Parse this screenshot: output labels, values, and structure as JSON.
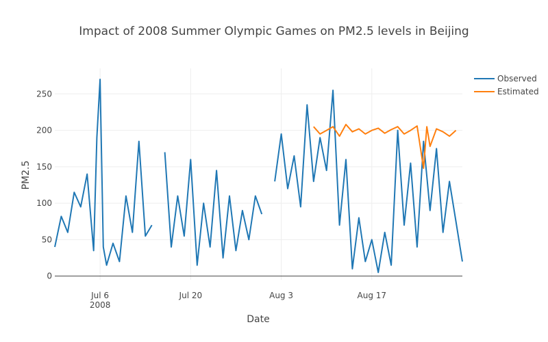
{
  "chart_data": {
    "type": "line",
    "title": "Impact of 2008 Summer Olympic Games on PM2.5 levels in Beijing",
    "xlabel": "Date",
    "ylabel": "PM2.5",
    "x_range": [
      "2008-06-29",
      "2008-08-31"
    ],
    "ylim": [
      -5,
      285
    ],
    "y_ticks": [
      0,
      50,
      100,
      150,
      200,
      250
    ],
    "x_ticks": [
      {
        "date": "2008-07-06",
        "label": "Jul 6",
        "sublabel": "2008"
      },
      {
        "date": "2008-07-20",
        "label": "Jul 20",
        "sublabel": ""
      },
      {
        "date": "2008-08-03",
        "label": "Aug 3",
        "sublabel": ""
      },
      {
        "date": "2008-08-17",
        "label": "Aug 17",
        "sublabel": ""
      }
    ],
    "grid": true,
    "legend_position": "top-right",
    "series": [
      {
        "name": "Observed",
        "color": "#1f77b4",
        "points": [
          [
            "2008-06-29",
            40
          ],
          [
            "2008-06-30",
            82
          ],
          [
            "2008-07-01",
            60
          ],
          [
            "2008-07-02",
            115
          ],
          [
            "2008-07-03",
            95
          ],
          [
            "2008-07-04",
            140
          ],
          [
            "2008-07-05",
            35
          ],
          [
            "2008-07-05 12:00",
            190
          ],
          [
            "2008-07-06",
            270
          ],
          [
            "2008-07-06 12:00",
            40
          ],
          [
            "2008-07-07",
            15
          ],
          [
            "2008-07-08",
            45
          ],
          [
            "2008-07-09",
            20
          ],
          [
            "2008-07-10",
            110
          ],
          [
            "2008-07-11",
            60
          ],
          [
            "2008-07-12",
            185
          ],
          [
            "2008-07-13",
            55
          ],
          [
            "2008-07-14",
            70
          ],
          [
            "2008-07-15",
            null
          ],
          [
            "2008-07-16",
            170
          ],
          [
            "2008-07-17",
            40
          ],
          [
            "2008-07-18",
            110
          ],
          [
            "2008-07-19",
            55
          ],
          [
            "2008-07-20",
            160
          ],
          [
            "2008-07-21",
            15
          ],
          [
            "2008-07-22",
            100
          ],
          [
            "2008-07-23",
            40
          ],
          [
            "2008-07-24",
            145
          ],
          [
            "2008-07-25",
            25
          ],
          [
            "2008-07-26",
            110
          ],
          [
            "2008-07-27",
            35
          ],
          [
            "2008-07-28",
            90
          ],
          [
            "2008-07-29",
            50
          ],
          [
            "2008-07-30",
            110
          ],
          [
            "2008-07-31",
            85
          ],
          [
            "2008-08-01",
            null
          ],
          [
            "2008-08-02",
            130
          ],
          [
            "2008-08-03",
            195
          ],
          [
            "2008-08-04",
            120
          ],
          [
            "2008-08-05",
            165
          ],
          [
            "2008-08-06",
            95
          ],
          [
            "2008-08-07",
            235
          ],
          [
            "2008-08-08",
            130
          ],
          [
            "2008-08-09",
            190
          ],
          [
            "2008-08-10",
            145
          ],
          [
            "2008-08-11",
            255
          ],
          [
            "2008-08-12",
            70
          ],
          [
            "2008-08-13",
            160
          ],
          [
            "2008-08-14",
            10
          ],
          [
            "2008-08-15",
            80
          ],
          [
            "2008-08-16",
            20
          ],
          [
            "2008-08-17",
            50
          ],
          [
            "2008-08-18",
            5
          ],
          [
            "2008-08-19",
            60
          ],
          [
            "2008-08-20",
            15
          ],
          [
            "2008-08-21",
            200
          ],
          [
            "2008-08-22",
            70
          ],
          [
            "2008-08-23",
            155
          ],
          [
            "2008-08-24",
            40
          ],
          [
            "2008-08-25",
            185
          ],
          [
            "2008-08-26",
            90
          ],
          [
            "2008-08-27",
            175
          ],
          [
            "2008-08-28",
            60
          ],
          [
            "2008-08-29",
            130
          ],
          [
            "2008-08-30",
            75
          ],
          [
            "2008-08-31",
            20
          ]
        ]
      },
      {
        "name": "Estimated",
        "color": "#ff7f0e",
        "points": [
          [
            "2008-08-08",
            205
          ],
          [
            "2008-08-09",
            195
          ],
          [
            "2008-08-10",
            200
          ],
          [
            "2008-08-11",
            205
          ],
          [
            "2008-08-12",
            192
          ],
          [
            "2008-08-13",
            208
          ],
          [
            "2008-08-14",
            198
          ],
          [
            "2008-08-15",
            202
          ],
          [
            "2008-08-16",
            195
          ],
          [
            "2008-08-17",
            200
          ],
          [
            "2008-08-18",
            203
          ],
          [
            "2008-08-19",
            196
          ],
          [
            "2008-08-20",
            201
          ],
          [
            "2008-08-21",
            205
          ],
          [
            "2008-08-22",
            195
          ],
          [
            "2008-08-23",
            200
          ],
          [
            "2008-08-24",
            206
          ],
          [
            "2008-08-25",
            148
          ],
          [
            "2008-08-25 12:00",
            205
          ],
          [
            "2008-08-26",
            178
          ],
          [
            "2008-08-27",
            202
          ],
          [
            "2008-08-28",
            198
          ],
          [
            "2008-08-29",
            192
          ],
          [
            "2008-08-30",
            200
          ]
        ]
      }
    ]
  }
}
